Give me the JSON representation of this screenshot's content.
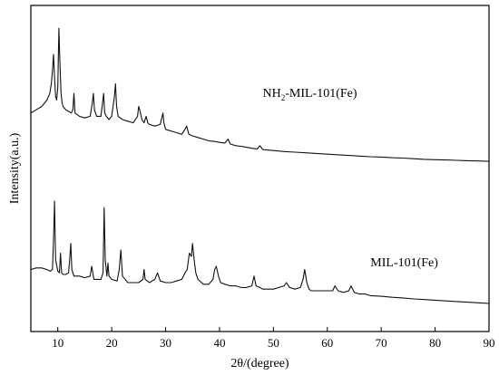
{
  "chart_data": {
    "type": "line",
    "title": "",
    "xlabel": "2θ/(degree)",
    "ylabel": "Intensity(a.u.)",
    "xlim": [
      5,
      90
    ],
    "ylim": [
      0,
      100
    ],
    "xticks": [
      10,
      20,
      30,
      40,
      50,
      60,
      70,
      80,
      90
    ],
    "y_tick_labels": false,
    "grid": false,
    "legend": "none",
    "series": [
      {
        "name": "NH2-MIL-101(Fe)",
        "label_parts": {
          "pre": "NH",
          "sub": "2",
          "post": "-MIL-101(Fe)"
        },
        "label_at": [
          48,
          72
        ],
        "color": "#111111",
        "x": [
          5,
          6,
          7,
          7.5,
          8,
          8.5,
          8.8,
          9.0,
          9.2,
          9.4,
          9.6,
          9.8,
          10.0,
          10.2,
          10.4,
          10.6,
          10.8,
          11.0,
          11.5,
          12.0,
          12.5,
          12.8,
          13.0,
          13.2,
          13.6,
          14.0,
          15.0,
          16.0,
          16.4,
          16.6,
          16.8,
          17.2,
          18.0,
          18.3,
          18.5,
          18.7,
          19.0,
          19.5,
          20.0,
          20.5,
          20.7,
          20.9,
          21.2,
          22.0,
          23.0,
          24.0,
          24.8,
          25.0,
          25.2,
          25.6,
          26.0,
          26.4,
          26.7,
          27.0,
          28.0,
          29.0,
          29.5,
          29.7,
          30.0,
          31.0,
          32.0,
          33.0,
          33.6,
          33.9,
          34.3,
          35.0,
          36.0,
          37.0,
          38.0,
          39.0,
          40.0,
          41.0,
          41.6,
          42.0,
          43.0,
          44.0,
          45.0,
          46.0,
          47.0,
          47.5,
          48.0,
          50.0,
          52.0,
          54.0,
          56.0,
          58.0,
          60.0,
          62.0,
          64.0,
          66.0,
          68.0,
          70.0,
          72.0,
          74.0,
          76.0,
          78.0,
          80.0,
          82.0,
          84.0,
          86.0,
          88.0,
          90.0
        ],
        "y": [
          67,
          68,
          69,
          70,
          71,
          73,
          76,
          80,
          85,
          78,
          72,
          71,
          75,
          93,
          82,
          73,
          70,
          69,
          68,
          67.5,
          67,
          68,
          73,
          67,
          66.5,
          66,
          65.5,
          66,
          70,
          73,
          68,
          66,
          66,
          70,
          73,
          67,
          66,
          65,
          66,
          72,
          76,
          69,
          66,
          65,
          64.5,
          64,
          66,
          69,
          68,
          65,
          64,
          66,
          64,
          63.5,
          63,
          63.5,
          67,
          64,
          62,
          61.5,
          61,
          60.5,
          62,
          63,
          60.5,
          60,
          59.5,
          59,
          58.5,
          58.3,
          58,
          57.8,
          59,
          57.5,
          57,
          56.8,
          56.5,
          56.2,
          56,
          57,
          55.8,
          55.5,
          55.2,
          55,
          54.8,
          54.6,
          54.4,
          54.2,
          54,
          53.8,
          53.6,
          53.5,
          53.3,
          53.2,
          53,
          52.8,
          52.7,
          52.6,
          52.5,
          52.4,
          52.3,
          52.2
        ]
      },
      {
        "name": "MIL-101(Fe)",
        "label_parts": {
          "pre": "MIL-101(Fe)",
          "sub": "",
          "post": ""
        },
        "label_at": [
          68,
          20
        ],
        "color": "#111111",
        "x": [
          5,
          6,
          7,
          8,
          8.6,
          9.0,
          9.2,
          9.4,
          9.6,
          10.0,
          10.3,
          10.5,
          10.7,
          11.0,
          11.5,
          12.0,
          12.2,
          12.4,
          12.6,
          13.0,
          14.0,
          15.0,
          16.0,
          16.3,
          16.5,
          16.7,
          17.0,
          18.0,
          18.4,
          18.6,
          18.8,
          19.1,
          19.3,
          19.5,
          20.0,
          21.0,
          21.4,
          21.7,
          22.0,
          23.0,
          24.0,
          25.0,
          25.8,
          26.0,
          26.2,
          27.0,
          28.0,
          28.5,
          29.0,
          30.0,
          31.0,
          32.0,
          33.0,
          33.6,
          34.0,
          34.4,
          34.8,
          35.0,
          35.3,
          35.6,
          36.0,
          37.0,
          38.0,
          38.8,
          39.1,
          39.4,
          39.8,
          40.2,
          41.0,
          42.0,
          43.0,
          44.0,
          45.0,
          46.0,
          46.4,
          46.8,
          47.5,
          48.0,
          49.0,
          50.0,
          51.0,
          52.0,
          52.4,
          53.0,
          54.0,
          55.0,
          55.5,
          55.8,
          56.2,
          56.6,
          57.0,
          58.0,
          59.0,
          60.0,
          61.0,
          61.4,
          62.0,
          63.0,
          64.0,
          64.4,
          65.0,
          66.0,
          67.0,
          68.0,
          70.0,
          72.0,
          74.0,
          76.0,
          78.0,
          80.0,
          82.0,
          84.0,
          86.0,
          88.0,
          90.0
        ],
        "y": [
          19,
          19.5,
          19.5,
          19,
          18.5,
          19,
          28,
          40,
          22,
          18.5,
          18,
          24,
          18,
          17.5,
          17.5,
          18,
          22,
          27,
          19,
          17,
          17,
          16.5,
          17,
          20,
          18,
          16,
          16,
          16,
          18,
          38,
          22,
          17,
          21,
          17,
          16,
          15.5,
          19,
          25,
          17,
          15,
          15,
          15,
          16,
          19,
          16,
          15,
          16,
          18,
          15.5,
          15,
          15,
          15.5,
          16,
          18,
          19,
          24,
          23,
          27,
          22,
          18,
          16,
          14.5,
          14.5,
          16,
          19,
          20,
          17,
          15,
          14.5,
          14,
          14,
          13.5,
          13.5,
          14,
          17,
          14,
          13.5,
          13,
          13,
          13,
          13.5,
          14,
          15,
          13.5,
          13,
          13.5,
          16,
          19,
          15,
          13,
          12.5,
          12.5,
          12.5,
          12.5,
          12.5,
          14,
          12.5,
          12,
          12.5,
          14,
          12,
          11.5,
          11.5,
          11,
          10.8,
          10.5,
          10.3,
          10,
          9.8,
          9.6,
          9.4,
          9.2,
          9,
          8.8,
          8.6
        ]
      }
    ]
  }
}
